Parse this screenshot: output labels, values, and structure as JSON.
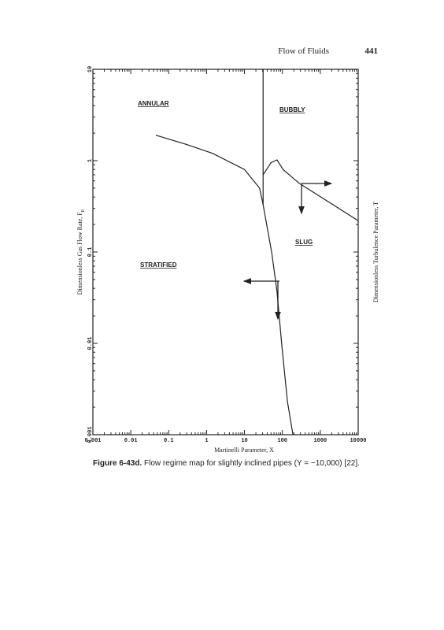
{
  "header": {
    "running_title": "Flow of Fluids",
    "page_number": "441"
  },
  "chart_data": {
    "type": "line",
    "xlabel": "Martinelli Parameter, X",
    "ylabel": "Dimensionless Gas Flow Rate, F",
    "ylabel_subscript": "E",
    "y2label": "Dimensionless Turbulence Parameter, T",
    "annotations": [
      "ANNULAR",
      "BUBBLY",
      "SLUG",
      "STRATIFIED"
    ],
    "xscale": "log",
    "yscale": "log",
    "xlim": [
      0.001,
      10000
    ],
    "ylim": [
      0.001,
      10
    ],
    "xticks": [
      0.001,
      0.01,
      0.1,
      1,
      10,
      100,
      1000,
      10000
    ],
    "yticks": [
      0.001,
      0.01,
      0.1,
      1,
      10
    ],
    "color": "#222222",
    "series": [
      {
        "x": [
          0.046,
          0.3,
          1.45,
          10,
          25,
          31,
          52,
          72,
          97,
          136,
          190
        ],
        "values": [
          1.9,
          1.5,
          1.2,
          0.8,
          0.5,
          0.33,
          0.1,
          0.037,
          0.0093,
          0.0023,
          0.001
        ]
      },
      {
        "x": [
          31,
          31
        ],
        "values": [
          10,
          0.33
        ]
      },
      {
        "x": [
          31,
          50,
          72,
          104,
          270,
          10000
        ],
        "values": [
          0.7,
          0.95,
          1.02,
          0.8,
          0.57,
          0.22
        ]
      }
    ]
  },
  "caption": {
    "label": "Figure 6-43d.",
    "text": "Flow regime map for slightly inclined pipes (Y = −10,000) [22]."
  }
}
